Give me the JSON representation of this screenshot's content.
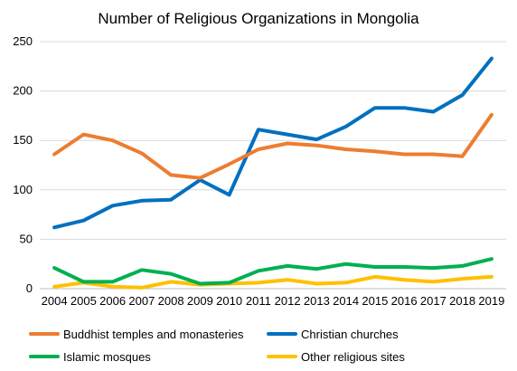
{
  "chart_data": {
    "type": "line",
    "title": "Number of Religious Organizations in Mongolia",
    "xlabel": "",
    "ylabel": "",
    "categories": [
      "2004",
      "2005",
      "2006",
      "2007",
      "2008",
      "2009",
      "2010",
      "2011",
      "2012",
      "2013",
      "2014",
      "2015",
      "2016",
      "2017",
      "2018",
      "2019"
    ],
    "ylim": [
      0,
      250
    ],
    "yticks": [
      0,
      50,
      100,
      150,
      200,
      250
    ],
    "grid": true,
    "legend_position": "bottom",
    "series": [
      {
        "name": "Buddhist temples and monasteries",
        "color": "#ED7D31",
        "values": [
          136,
          156,
          150,
          137,
          115,
          112,
          126,
          141,
          147,
          145,
          141,
          139,
          136,
          136,
          134,
          176
        ]
      },
      {
        "name": "Christian churches",
        "color": "#0070C0",
        "values": [
          62,
          69,
          84,
          89,
          90,
          110,
          95,
          161,
          156,
          151,
          164,
          183,
          183,
          179,
          196,
          233
        ]
      },
      {
        "name": "Islamic mosques",
        "color": "#00B050",
        "values": [
          21,
          7,
          7,
          19,
          15,
          5,
          6,
          18,
          23,
          20,
          25,
          22,
          22,
          21,
          23,
          30
        ]
      },
      {
        "name": "Other religious sites",
        "color": "#FFC000",
        "values": [
          2,
          6,
          2,
          1,
          7,
          4,
          5,
          6,
          9,
          5,
          6,
          12,
          9,
          7,
          10,
          12
        ]
      }
    ]
  }
}
